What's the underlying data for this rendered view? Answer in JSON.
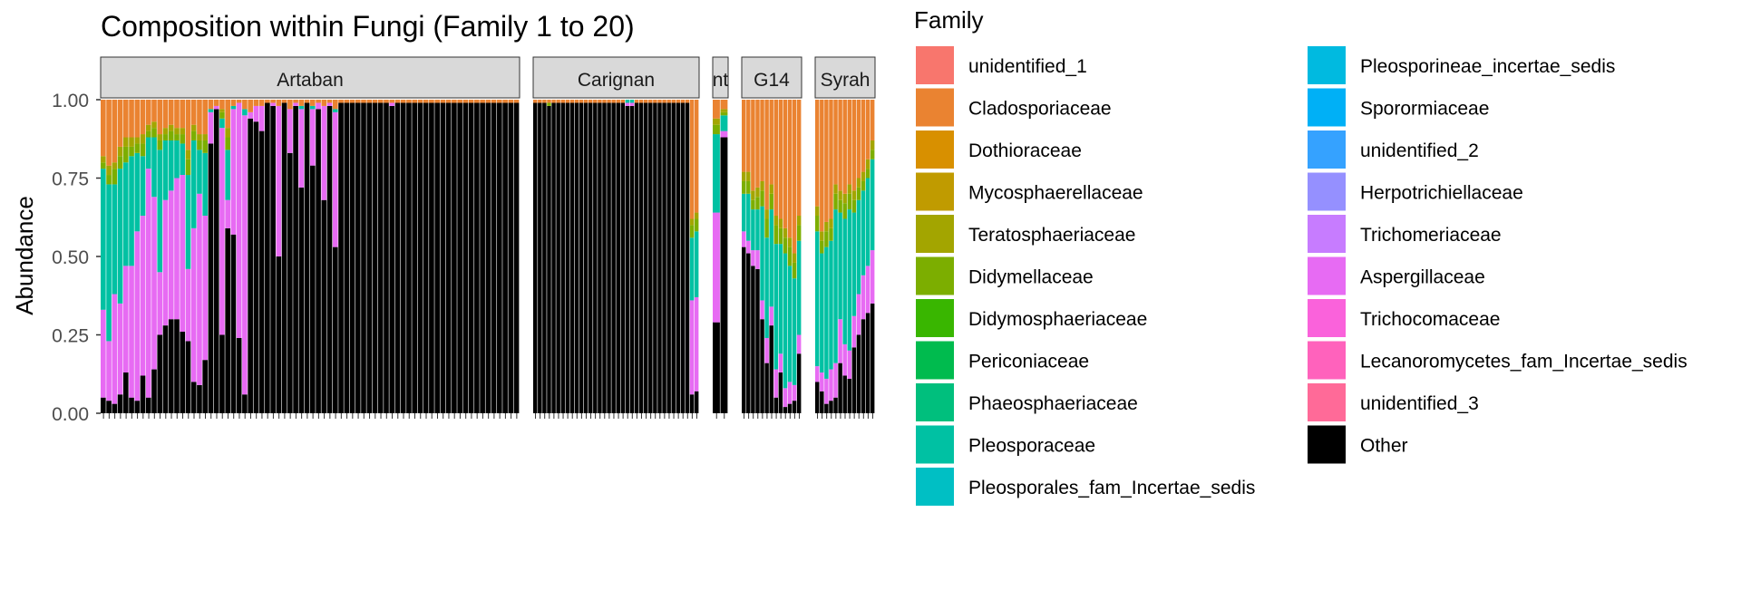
{
  "chart_data": {
    "type": "bar",
    "stacked": true,
    "faceted": true,
    "title": "Composition within Fungi (Family 1 to 20)",
    "xlabel": "",
    "ylabel": "Abundance",
    "ylim": [
      0,
      1
    ],
    "yticks": [
      "0.00",
      "0.25",
      "0.50",
      "0.75",
      "1.00"
    ],
    "grid": false,
    "legend_title": "Family",
    "legend_position": "right",
    "families": [
      {
        "name": "unidentified_1",
        "color": "#F8766D"
      },
      {
        "name": "Cladosporiaceae",
        "color": "#EA8331"
      },
      {
        "name": "Dothioraceae",
        "color": "#D89000"
      },
      {
        "name": "Mycosphaerellaceae",
        "color": "#C09B00"
      },
      {
        "name": "Teratosphaeriaceae",
        "color": "#A3A500"
      },
      {
        "name": "Didymellaceae",
        "color": "#7CAE00"
      },
      {
        "name": "Didymosphaeriaceae",
        "color": "#39B600"
      },
      {
        "name": "Periconiaceae",
        "color": "#00BB4E"
      },
      {
        "name": "Phaeosphaeriaceae",
        "color": "#00BF7D"
      },
      {
        "name": "Pleosporaceae",
        "color": "#00C1A3"
      },
      {
        "name": "Pleosporales_fam_Incertae_sedis",
        "color": "#00BFC4"
      },
      {
        "name": "Pleosporineae_incertae_sedis",
        "color": "#00BAE0"
      },
      {
        "name": "Sporormiaceae",
        "color": "#00B0F6"
      },
      {
        "name": "unidentified_2",
        "color": "#35A2FF"
      },
      {
        "name": "Herpotrichiellaceae",
        "color": "#9590FF"
      },
      {
        "name": "Trichomeriaceae",
        "color": "#C77CFF"
      },
      {
        "name": "Aspergillaceae",
        "color": "#E76BF3"
      },
      {
        "name": "Trichocomaceae",
        "color": "#FA62DB"
      },
      {
        "name": "Lecanoromycetes_fam_Incertae_sedis",
        "color": "#FF62BC"
      },
      {
        "name": "unidentified_3",
        "color": "#FF6A98"
      },
      {
        "name": "Other",
        "color": "#000000"
      }
    ],
    "facets": [
      {
        "label": "Artaban",
        "other": [
          0.05,
          0.04,
          0.03,
          0.06,
          0.13,
          0.05,
          0.04,
          0.12,
          0.05,
          0.14,
          0.25,
          0.28,
          0.3,
          0.3,
          0.26,
          0.23,
          0.1,
          0.09,
          0.17,
          0.86,
          0.97,
          0.25,
          0.59,
          0.57,
          0.24,
          0.06,
          0.94,
          0.93,
          0.9,
          0.99,
          0.98,
          0.5,
          0.99,
          0.83,
          0.98,
          0.72,
          0.99,
          0.79,
          0.97,
          0.68,
          0.98,
          0.53,
          0.99,
          0.99,
          0.99,
          0.99,
          0.99,
          0.99,
          0.99,
          0.99,
          0.99,
          0.98,
          0.99,
          0.99,
          0.99,
          0.99,
          0.99,
          0.99,
          0.99,
          0.99,
          0.99,
          0.99,
          0.99,
          0.99,
          0.99,
          0.99,
          0.99,
          0.99,
          0.99,
          0.99,
          0.99,
          0.99,
          0.99,
          0.99
        ],
        "pink": [
          0.28,
          0.19,
          0.35,
          0.29,
          0.34,
          0.42,
          0.54,
          0.51,
          0.73,
          0.55,
          0.2,
          0.4,
          0.41,
          0.45,
          0.5,
          0.23,
          0.49,
          0.61,
          0.46,
          0.1,
          0.01,
          0.66,
          0.09,
          0.4,
          0.75,
          0.89,
          0.02,
          0.05,
          0.08,
          0.0,
          0.01,
          0.48,
          0.0,
          0.14,
          0.01,
          0.25,
          0.0,
          0.18,
          0.02,
          0.3,
          0.01,
          0.43,
          0.0,
          0.0,
          0.0,
          0.0,
          0.0,
          0.0,
          0.0,
          0.0,
          0.0,
          0.01,
          0.0,
          0.0,
          0.0,
          0.0,
          0.0,
          0.0,
          0.0,
          0.0,
          0.0,
          0.0,
          0.0,
          0.0,
          0.0,
          0.0,
          0.0,
          0.0,
          0.0,
          0.0,
          0.0,
          0.0,
          0.0,
          0.0
        ],
        "teal": [
          0.45,
          0.5,
          0.35,
          0.43,
          0.33,
          0.35,
          0.25,
          0.19,
          0.1,
          0.19,
          0.39,
          0.19,
          0.16,
          0.12,
          0.1,
          0.3,
          0.28,
          0.14,
          0.2,
          0.01,
          0.0,
          0.03,
          0.16,
          0.01,
          0.0,
          0.02,
          0.0,
          0.0,
          0.0,
          0.0,
          0.0,
          0.0,
          0.0,
          0.0,
          0.0,
          0.01,
          0.0,
          0.01,
          0.0,
          0.0,
          0.0,
          0.01,
          0.0,
          0.0,
          0.0,
          0.0,
          0.0,
          0.0,
          0.0,
          0.0,
          0.0,
          0.0,
          0.0,
          0.0,
          0.0,
          0.0,
          0.0,
          0.0,
          0.0,
          0.0,
          0.0,
          0.0,
          0.0,
          0.0,
          0.0,
          0.0,
          0.0,
          0.0,
          0.0,
          0.0,
          0.0,
          0.0,
          0.0,
          0.0
        ],
        "green": [
          0.02,
          0.03,
          0.05,
          0.04,
          0.05,
          0.03,
          0.03,
          0.04,
          0.02,
          0.03,
          0.03,
          0.02,
          0.03,
          0.02,
          0.03,
          0.05,
          0.03,
          0.03,
          0.04,
          0.0,
          0.0,
          0.02,
          0.04,
          0.0,
          0.0,
          0.0,
          0.0,
          0.0,
          0.0,
          0.0,
          0.0,
          0.0,
          0.0,
          0.0,
          0.0,
          0.0,
          0.0,
          0.0,
          0.0,
          0.0,
          0.0,
          0.0,
          0.0,
          0.0,
          0.0,
          0.0,
          0.0,
          0.0,
          0.0,
          0.0,
          0.0,
          0.0,
          0.0,
          0.0,
          0.0,
          0.0,
          0.0,
          0.0,
          0.0,
          0.0,
          0.0,
          0.0,
          0.0,
          0.0,
          0.0,
          0.0,
          0.0,
          0.0,
          0.0,
          0.0,
          0.0,
          0.0,
          0.0,
          0.0
        ],
        "ys": [
          0.02,
          0.03,
          0.02,
          0.03,
          0.03,
          0.03,
          0.02,
          0.03,
          0.02,
          0.02,
          0.02,
          0.02,
          0.02,
          0.02,
          0.02,
          0.03,
          0.02,
          0.02,
          0.02,
          0.0,
          0.0,
          0.01,
          0.03,
          0.0,
          0.0,
          0.0,
          0.0,
          0.0,
          0.0,
          0.0,
          0.0,
          0.0,
          0.0,
          0.0,
          0.0,
          0.0,
          0.0,
          0.0,
          0.0,
          0.0,
          0.0,
          0.0,
          0.0,
          0.0,
          0.0,
          0.0,
          0.0,
          0.0,
          0.0,
          0.0,
          0.0,
          0.0,
          0.0,
          0.0,
          0.0,
          0.0,
          0.0,
          0.0,
          0.0,
          0.0,
          0.0,
          0.0,
          0.0,
          0.0,
          0.0,
          0.0,
          0.0,
          0.0,
          0.0,
          0.0,
          0.0,
          0.0,
          0.0,
          0.0
        ]
      },
      {
        "label": "Carignan",
        "other": [
          0.99,
          0.99,
          0.99,
          0.98,
          0.99,
          0.99,
          0.99,
          0.99,
          0.99,
          0.99,
          0.99,
          0.99,
          0.99,
          0.99,
          0.99,
          0.99,
          0.99,
          0.99,
          0.99,
          0.99,
          0.98,
          0.98,
          0.99,
          0.99,
          0.99,
          0.99,
          0.99,
          0.99,
          0.99,
          0.99,
          0.99,
          0.99,
          0.99,
          0.99,
          0.06,
          0.07
        ],
        "pink": [
          0.0,
          0.0,
          0.0,
          0.0,
          0.0,
          0.0,
          0.0,
          0.0,
          0.0,
          0.0,
          0.0,
          0.0,
          0.0,
          0.0,
          0.0,
          0.0,
          0.0,
          0.0,
          0.0,
          0.0,
          0.01,
          0.01,
          0.0,
          0.0,
          0.0,
          0.0,
          0.0,
          0.0,
          0.0,
          0.0,
          0.0,
          0.0,
          0.0,
          0.0,
          0.3,
          0.3
        ],
        "teal": [
          0.0,
          0.0,
          0.0,
          0.0,
          0.0,
          0.0,
          0.0,
          0.0,
          0.0,
          0.0,
          0.0,
          0.0,
          0.0,
          0.0,
          0.0,
          0.0,
          0.0,
          0.0,
          0.0,
          0.0,
          0.01,
          0.01,
          0.0,
          0.0,
          0.0,
          0.0,
          0.0,
          0.0,
          0.0,
          0.0,
          0.0,
          0.0,
          0.0,
          0.0,
          0.2,
          0.21
        ],
        "green": [
          0.0,
          0.0,
          0.0,
          0.01,
          0.0,
          0.0,
          0.0,
          0.0,
          0.0,
          0.0,
          0.0,
          0.0,
          0.0,
          0.0,
          0.0,
          0.0,
          0.0,
          0.0,
          0.0,
          0.0,
          0.0,
          0.0,
          0.0,
          0.0,
          0.0,
          0.0,
          0.0,
          0.0,
          0.0,
          0.0,
          0.0,
          0.0,
          0.0,
          0.0,
          0.04,
          0.04
        ],
        "ys": [
          0.0,
          0.0,
          0.0,
          0.0,
          0.0,
          0.0,
          0.0,
          0.0,
          0.0,
          0.0,
          0.0,
          0.0,
          0.0,
          0.0,
          0.0,
          0.0,
          0.0,
          0.0,
          0.0,
          0.0,
          0.0,
          0.0,
          0.0,
          0.0,
          0.0,
          0.0,
          0.0,
          0.0,
          0.0,
          0.0,
          0.0,
          0.0,
          0.0,
          0.0,
          0.02,
          0.02
        ]
      },
      {
        "label": "Control",
        "label_display": "nt",
        "other": [
          0.29,
          0.88
        ],
        "pink": [
          0.35,
          0.02
        ],
        "teal": [
          0.25,
          0.05
        ],
        "green": [
          0.03,
          0.01
        ],
        "ys": [
          0.02,
          0.01
        ]
      },
      {
        "label": "G14",
        "other": [
          0.53,
          0.51,
          0.47,
          0.46,
          0.3,
          0.16,
          0.28,
          0.05,
          0.13,
          0.02,
          0.03,
          0.04,
          0.19
        ],
        "pink": [
          0.05,
          0.04,
          0.05,
          0.06,
          0.06,
          0.08,
          0.06,
          0.09,
          0.06,
          0.06,
          0.07,
          0.05,
          0.06
        ],
        "teal": [
          0.12,
          0.15,
          0.13,
          0.13,
          0.3,
          0.32,
          0.31,
          0.4,
          0.35,
          0.43,
          0.37,
          0.34,
          0.3
        ],
        "green": [
          0.04,
          0.04,
          0.03,
          0.04,
          0.05,
          0.06,
          0.05,
          0.06,
          0.05,
          0.05,
          0.06,
          0.05,
          0.05
        ],
        "ys": [
          0.03,
          0.03,
          0.03,
          0.03,
          0.03,
          0.03,
          0.03,
          0.03,
          0.03,
          0.03,
          0.03,
          0.03,
          0.03
        ]
      },
      {
        "label": "Syrah",
        "other": [
          0.1,
          0.07,
          0.03,
          0.04,
          0.05,
          0.16,
          0.12,
          0.11,
          0.21,
          0.25,
          0.3,
          0.32,
          0.35
        ],
        "pink": [
          0.05,
          0.06,
          0.08,
          0.1,
          0.11,
          0.14,
          0.1,
          0.09,
          0.1,
          0.13,
          0.14,
          0.15,
          0.17
        ],
        "teal": [
          0.43,
          0.38,
          0.42,
          0.41,
          0.49,
          0.34,
          0.4,
          0.45,
          0.33,
          0.3,
          0.27,
          0.28,
          0.29
        ],
        "green": [
          0.05,
          0.04,
          0.05,
          0.04,
          0.05,
          0.04,
          0.05,
          0.05,
          0.04,
          0.04,
          0.03,
          0.03,
          0.03
        ],
        "ys": [
          0.03,
          0.03,
          0.03,
          0.03,
          0.03,
          0.03,
          0.03,
          0.03,
          0.03,
          0.03,
          0.03,
          0.03,
          0.03
        ]
      }
    ]
  }
}
